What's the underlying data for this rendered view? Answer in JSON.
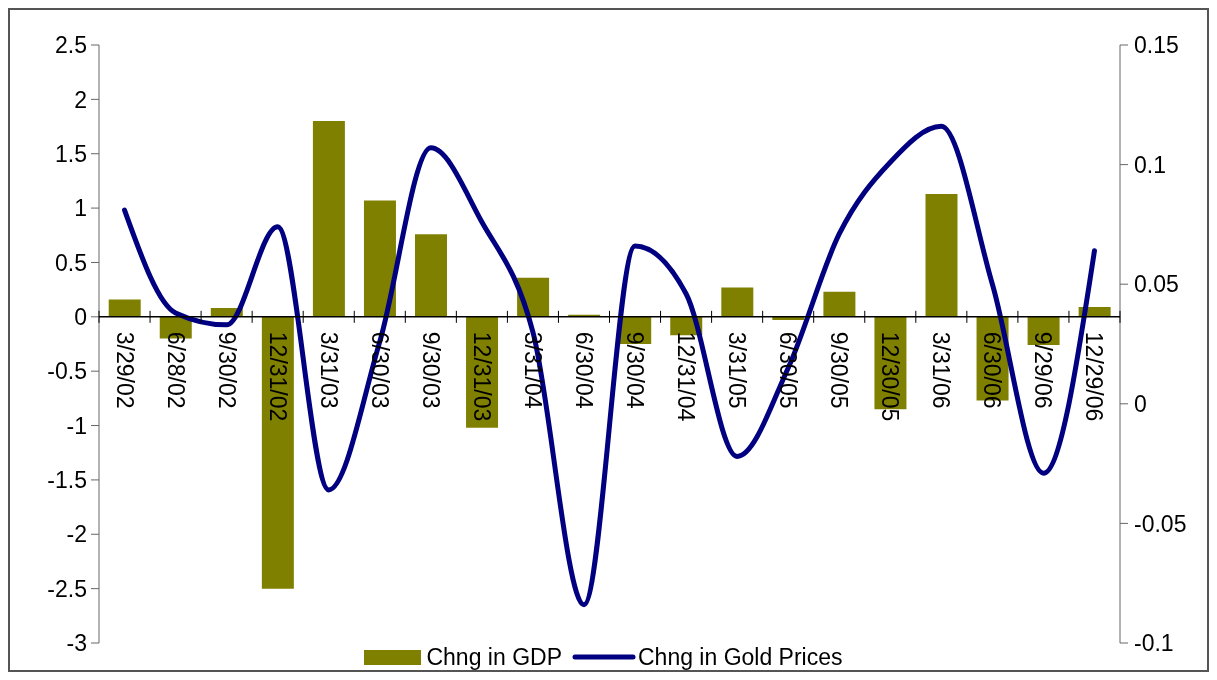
{
  "chart_data": {
    "type": "bar",
    "categories": [
      "3/29/02",
      "6/28/02",
      "9/30/02",
      "12/31/02",
      "3/31/03",
      "6/30/03",
      "9/30/03",
      "12/31/03",
      "3/31/04",
      "6/30/04",
      "9/30/04",
      "12/31/04",
      "3/31/05",
      "6/30/05",
      "9/30/05",
      "12/30/05",
      "3/31/06",
      "6/30/06",
      "9/29/06",
      "12/29/06"
    ],
    "series": [
      {
        "name": "Chng in GDP",
        "color": "#808000",
        "values": [
          0.16,
          -0.2,
          0.08,
          -2.5,
          1.8,
          1.07,
          0.76,
          -1.02,
          0.36,
          0.02,
          -0.25,
          -0.17,
          0.27,
          -0.03,
          0.23,
          -0.85,
          1.13,
          -0.77,
          -0.26,
          0.09
        ]
      },
      {
        "name": "Chng in Gold Prices",
        "type": "line",
        "color": "#000080",
        "axis": "y2",
        "values": [
          0.081,
          0.038,
          0.033,
          0.074,
          -0.036,
          0.026,
          0.107,
          0.076,
          0.03,
          -0.084,
          0.066,
          0.046,
          -0.022,
          0.015,
          0.071,
          0.101,
          0.116,
          0.05,
          -0.029,
          0.064
        ]
      }
    ],
    "ylim": [
      -3,
      2.5
    ],
    "yticks": [
      2.5,
      2,
      1.5,
      1,
      0.5,
      0,
      -0.5,
      -1,
      -1.5,
      -2,
      -2.5,
      -3
    ],
    "y2lim": [
      -0.1,
      0.15
    ],
    "y2ticks": [
      0.15,
      0.1,
      0.05,
      0,
      -0.05,
      -0.1
    ],
    "legend": "bottom"
  }
}
